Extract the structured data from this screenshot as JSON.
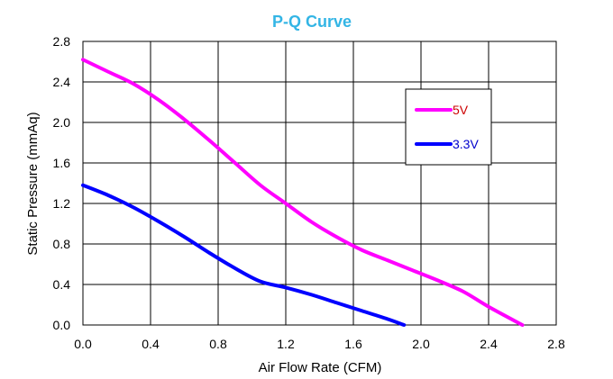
{
  "chart_data": {
    "type": "line",
    "title": "P-Q Curve",
    "title_color": "#33b5e5",
    "xlabel": "Air Flow Rate (CFM)",
    "ylabel": "Static Pressure (mmAq)",
    "xlim": [
      0,
      2.8
    ],
    "ylim": [
      0,
      2.8
    ],
    "x_ticks": [
      "0.0",
      "0.4",
      "0.8",
      "1.2",
      "1.6",
      "2.0",
      "2.4",
      "2.8"
    ],
    "y_ticks": [
      "0.0",
      "0.4",
      "0.8",
      "1.2",
      "1.6",
      "2.0",
      "2.4",
      "2.8"
    ],
    "grid": true,
    "legend_position": "top-right",
    "series": [
      {
        "name": "5V",
        "color": "#ff00ff",
        "label_color": "#cc0000",
        "x": [
          0.0,
          0.15,
          0.3,
          0.45,
          0.6,
          0.75,
          0.9,
          1.05,
          1.2,
          1.35,
          1.5,
          1.65,
          1.8,
          1.95,
          2.1,
          2.25,
          2.4,
          2.6
        ],
        "y": [
          2.62,
          2.5,
          2.38,
          2.22,
          2.03,
          1.82,
          1.6,
          1.38,
          1.2,
          1.02,
          0.87,
          0.74,
          0.64,
          0.54,
          0.44,
          0.33,
          0.18,
          0.0
        ]
      },
      {
        "name": "3.3V",
        "color": "#0000ff",
        "label_color": "#0000cc",
        "x": [
          0.0,
          0.15,
          0.3,
          0.45,
          0.6,
          0.75,
          0.9,
          1.05,
          1.2,
          1.35,
          1.5,
          1.65,
          1.8,
          1.9
        ],
        "y": [
          1.38,
          1.28,
          1.16,
          1.02,
          0.87,
          0.71,
          0.56,
          0.43,
          0.37,
          0.3,
          0.22,
          0.14,
          0.06,
          0.0
        ]
      }
    ]
  }
}
